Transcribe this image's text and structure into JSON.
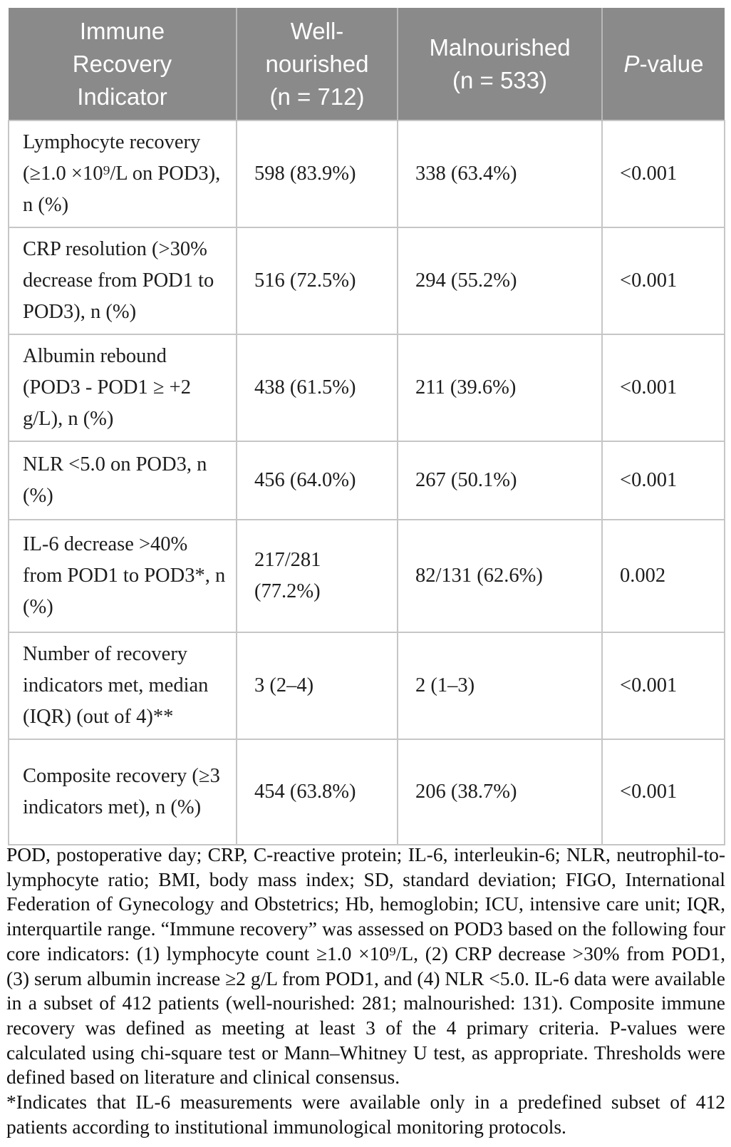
{
  "colors": {
    "header-bg": "#8a8a8a",
    "header-text": "#ffffff",
    "header-separator": "#b9b9b9",
    "grid": "#c6c6c6",
    "body-text": "#1d1d1d"
  },
  "table": {
    "headers": [
      {
        "id": "indicator",
        "label": "Immune Recovery Indicator",
        "lines": [
          "Immune",
          "Recovery",
          "Indicator"
        ]
      },
      {
        "id": "well_nourished",
        "label": "Well-nourished (n = 712)",
        "lines": [
          "Well-",
          "nourished",
          "(n = 712)"
        ]
      },
      {
        "id": "malnourished",
        "label": "Malnourished (n = 533)",
        "lines": [
          "Malnourished",
          "(n = 533)"
        ]
      },
      {
        "id": "p_value",
        "label": "P-value",
        "lines": [
          "P-value"
        ]
      }
    ],
    "rows": [
      {
        "indicator": "Lymphocyte recovery (≥1.0 ×10⁹/L on POD3), n (%)",
        "well_nourished": "598 (83.9%)",
        "malnourished": "338 (63.4%)",
        "p_value": "<0.001"
      },
      {
        "indicator": "CRP resolution (>30% decrease from POD1 to POD3), n (%)",
        "well_nourished": "516 (72.5%)",
        "malnourished": "294 (55.2%)",
        "p_value": "<0.001"
      },
      {
        "indicator": "Albumin rebound (POD3 - POD1 ≥ +2 g/L), n (%)",
        "well_nourished": "438 (61.5%)",
        "malnourished": "211 (39.6%)",
        "p_value": "<0.001"
      },
      {
        "indicator": "NLR <5.0 on POD3, n (%)",
        "well_nourished": "456 (64.0%)",
        "malnourished": "267 (50.1%)",
        "p_value": "<0.001"
      },
      {
        "indicator": "IL-6 decrease >40% from POD1 to POD3*, n (%)",
        "well_nourished": "217/281 (77.2%)",
        "malnourished": "82/131 (62.6%)",
        "p_value": "0.002"
      },
      {
        "indicator": "Number of recovery indicators met, median (IQR) (out of 4)**",
        "well_nourished": "3 (2–4)",
        "malnourished": "2 (1–3)",
        "p_value": "<0.001"
      },
      {
        "indicator": "Composite recovery (≥3 indicators met), n (%)",
        "well_nourished": "454 (63.8%)",
        "malnourished": "206 (38.7%)",
        "p_value": "<0.001"
      }
    ]
  },
  "footnotes": {
    "abbreviations": "POD, postoperative day; CRP, C-reactive protein; IL-6, interleukin-6; NLR, neutrophil-to-lymphocyte ratio; BMI, body mass index; SD, standard deviation; FIGO, International Federation of Gynecology and Obstetrics; Hb, hemoglobin; ICU, intensive care unit; IQR, interquartile range. “Immune recovery” was assessed on POD3 based on the following four core indicators: (1) lymphocyte count ≥1.0 ×10⁹/L, (2) CRP decrease >30% from POD1, (3) serum albumin increase ≥2 g/L from POD1, and (4) NLR <5.0. IL-6 data were available in a subset of 412 patients (well-nourished: 281; malnourished: 131). Composite immune recovery was defined as meeting at least 3 of the 4 primary criteria. P-values were calculated using chi-square test or Mann–Whitney U test, as appropriate. Thresholds were defined based on literature and clinical consensus.",
    "asterisk_note": "*Indicates that IL-6 measurements were available only in a predefined subset of 412 patients according to institutional immunological monitoring protocols."
  }
}
